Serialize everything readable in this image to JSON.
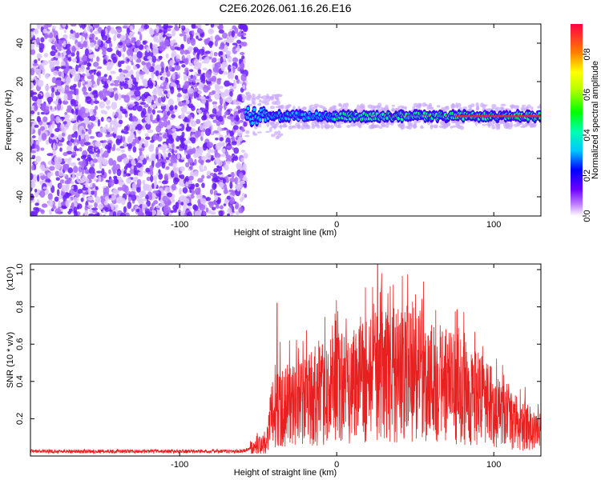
{
  "title": "C2E6.2026.061.16.26.E16",
  "chart_data": [
    {
      "type": "heatmap",
      "xlabel": "Height of straight line (km)",
      "ylabel": "Frequency (Hz)",
      "xlim": [
        -195,
        130
      ],
      "ylim": [
        -50,
        50
      ],
      "x_ticks": [
        -100,
        0,
        100
      ],
      "y_ticks": [
        -40,
        -20,
        0,
        20,
        40
      ],
      "colorbar": {
        "label": "Normalized spectral amplitude",
        "range": [
          0,
          0.95
        ],
        "ticks": [
          0.0,
          0.2,
          0.4,
          0.6,
          0.8
        ],
        "tick_labels": [
          "0.0",
          "0.2",
          "0.4",
          "0.6",
          "0.8"
        ]
      },
      "noise_region_x": [
        -195,
        -58
      ],
      "signal_region_x": [
        -58,
        130
      ],
      "signal_center_frequency_hz": 2,
      "grid": false,
      "x_tick_labels": [
        "-100",
        "0",
        "100"
      ],
      "y_tick_labels": [
        "-40",
        "-20",
        "0",
        "20",
        "40"
      ]
    },
    {
      "type": "line",
      "xlabel": "Height of straight line (km)",
      "ylabel": "SNR (10 * v/v)",
      "y_multiplier": "(x10⁴)",
      "xlim": [
        -195,
        130
      ],
      "ylim": [
        0,
        1.03
      ],
      "x_ticks": [
        -100,
        0,
        100
      ],
      "y_ticks": [
        0.2,
        0.4,
        0.6,
        0.8,
        1.0
      ],
      "series_color": "#e82020",
      "envelope": {
        "x": [
          -195,
          -60,
          -45,
          -40,
          -30,
          -20,
          -10,
          0,
          10,
          20,
          30,
          40,
          50,
          60,
          70,
          80,
          90,
          100,
          110,
          120,
          130
        ],
        "y": [
          0.025,
          0.025,
          0.08,
          0.3,
          0.3,
          0.33,
          0.36,
          0.4,
          0.44,
          0.46,
          0.48,
          0.48,
          0.47,
          0.45,
          0.42,
          0.38,
          0.34,
          0.28,
          0.21,
          0.18,
          0.14
        ]
      },
      "peaks": [
        {
          "x": -38,
          "y": 0.82
        },
        {
          "x": 26,
          "y": 1.03
        },
        {
          "x": 36,
          "y": 0.92
        },
        {
          "x": 53,
          "y": 0.78
        },
        {
          "x": 91,
          "y": 0.5
        }
      ],
      "grid": false,
      "x_tick_labels": [
        "-100",
        "0",
        "100"
      ],
      "y_tick_labels": [
        "0.2",
        "0.4",
        "0.6",
        "0.8",
        "1.0"
      ]
    }
  ]
}
